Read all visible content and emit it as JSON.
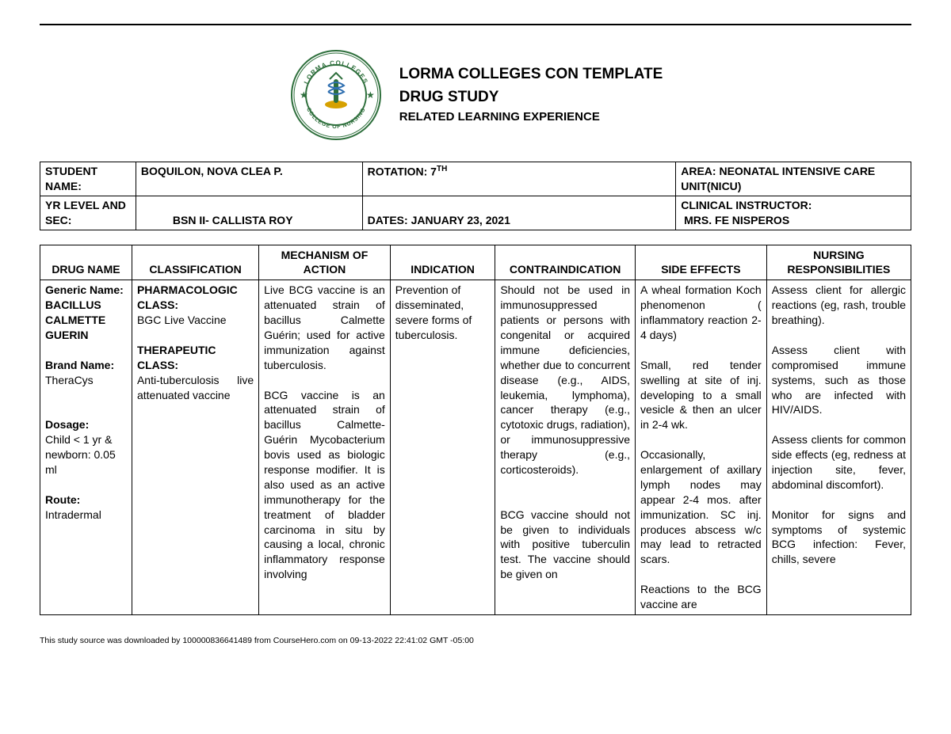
{
  "header": {
    "line1": "LORMA COLLEGES CON TEMPLATE",
    "line2": "DRUG STUDY",
    "line3": "RELATED LEARNING EXPERIENCE",
    "seal_outer_text_top": "LORMA COLLEGES",
    "seal_outer_text_bottom": "COLLEGE OF NURSING",
    "seal_colors": {
      "ring_border": "#2e6f3c",
      "ring_fill": "#ffffff",
      "ribbon": "#2e6f3c",
      "inner_circle_fill": "#ffffff",
      "accent_gold": "#d6a100",
      "cross_blue": "#2f6fb0"
    }
  },
  "info": {
    "labels": {
      "student_name": "STUDENT NAME:",
      "rotation": "ROTATION: 7",
      "rotation_sup": "TH",
      "area": "AREA: NEONATAL INTENSIVE CARE UNIT(NICU)",
      "yr_level": "YR LEVEL AND SEC:",
      "dates": "DATES: JANUARY 23, 2021",
      "ci": "CLINICAL INSTRUCTOR:"
    },
    "values": {
      "student_name": "BOQUILON, NOVA CLEA P.",
      "yr_level": "BSN II- CALLISTA ROY",
      "ci": "MRS. FE NISPEROS"
    }
  },
  "drug_headers": {
    "c1": "DRUG NAME",
    "c2": "CLASSIFICATION",
    "c3_top": "MECHANISM OF",
    "c3_bot": "ACTION",
    "c4": "INDICATION",
    "c5": "CONTRAINDICATION",
    "c6": "SIDE EFFECTS",
    "c7_top": "NURSING",
    "c7_bot": "RESPONSIBILITIES"
  },
  "drug_row": {
    "drug_name_html": "<b>Generic Name:</b><br><b>BACILLUS CALMETTE GUERIN</b><br><br><b>Brand Name:</b><br>TheraCys<br><br><br><b>Dosage:</b><br>Child &lt; 1 yr &amp; newborn: 0.05 ml<br><br><b>Route:</b><br>Intradermal",
    "classification_html": "<b>PHARMACOLOGIC CLASS:</b><br>BGC Live Vaccine<br><br><b>THERAPEUTIC CLASS:</b><br><span style='display:block;text-align:justify'>Anti-tuberculosis live attenuated vaccine</span>",
    "mechanism_html": "Live BCG vaccine is an attenuated strain of bacillus Calmette Guérin; used for active immunization against tuberculosis.<br><br>BCG vaccine is an attenuated strain of bacillus Calmette-Guérin Mycobacterium bovis used as biologic response modifier. It is also used as an active immunotherapy for the treatment of bladder carcinoma in situ by causing a local, chronic inflammatory response involving",
    "indication_html": "Prevention of disseminated, severe forms of tuberculosis.",
    "contra_html": "Should not be used in immunosuppressed patients or persons with congenital or acquired immune deficiencies, whether due to concurrent disease (e.g., AIDS, leukemia, lymphoma), cancer therapy (e.g., cytotoxic drugs, radiation), or immunosuppressive therapy (e.g., corticosteroids).<br><br><br>BCG vaccine should not be given to individuals with positive tuberculin test. The vaccine should be given on",
    "side_html": "A wheal formation Koch phenomenon ( inflammatory reaction 2-4 days)<br><br>Small, red tender swelling at site of inj. developing to a small vesicle &amp; then an ulcer in 2-4 wk.<br><br>Occasionally, enlargement of axillary lymph nodes may appear 2-4 mos. after immunization. SC inj. produces abscess w/c may lead to retracted scars.<br><br>Reactions to the BCG vaccine are",
    "nursing_html": "Assess client for allergic reactions (eg, rash, trouble breathing).<br><br>Assess client with compromised immune systems, such as those who are infected with HIV/AIDS.<br><br>Assess clients for common side effects (eg, redness at injection site, fever, abdominal discomfort).<br><br>Monitor for signs and symptoms of systemic BCG infection: Fever, chills, severe"
  },
  "column_widths": {
    "c1": "10.5%",
    "c2": "14.5%",
    "c3": "15%",
    "c4": "12%",
    "c5": "16%",
    "c6": "15%",
    "c7": "16.5%"
  },
  "footnote": "This study source was downloaded by 100000836641489 from CourseHero.com on 09-13-2022 22:41:02 GMT -05:00"
}
